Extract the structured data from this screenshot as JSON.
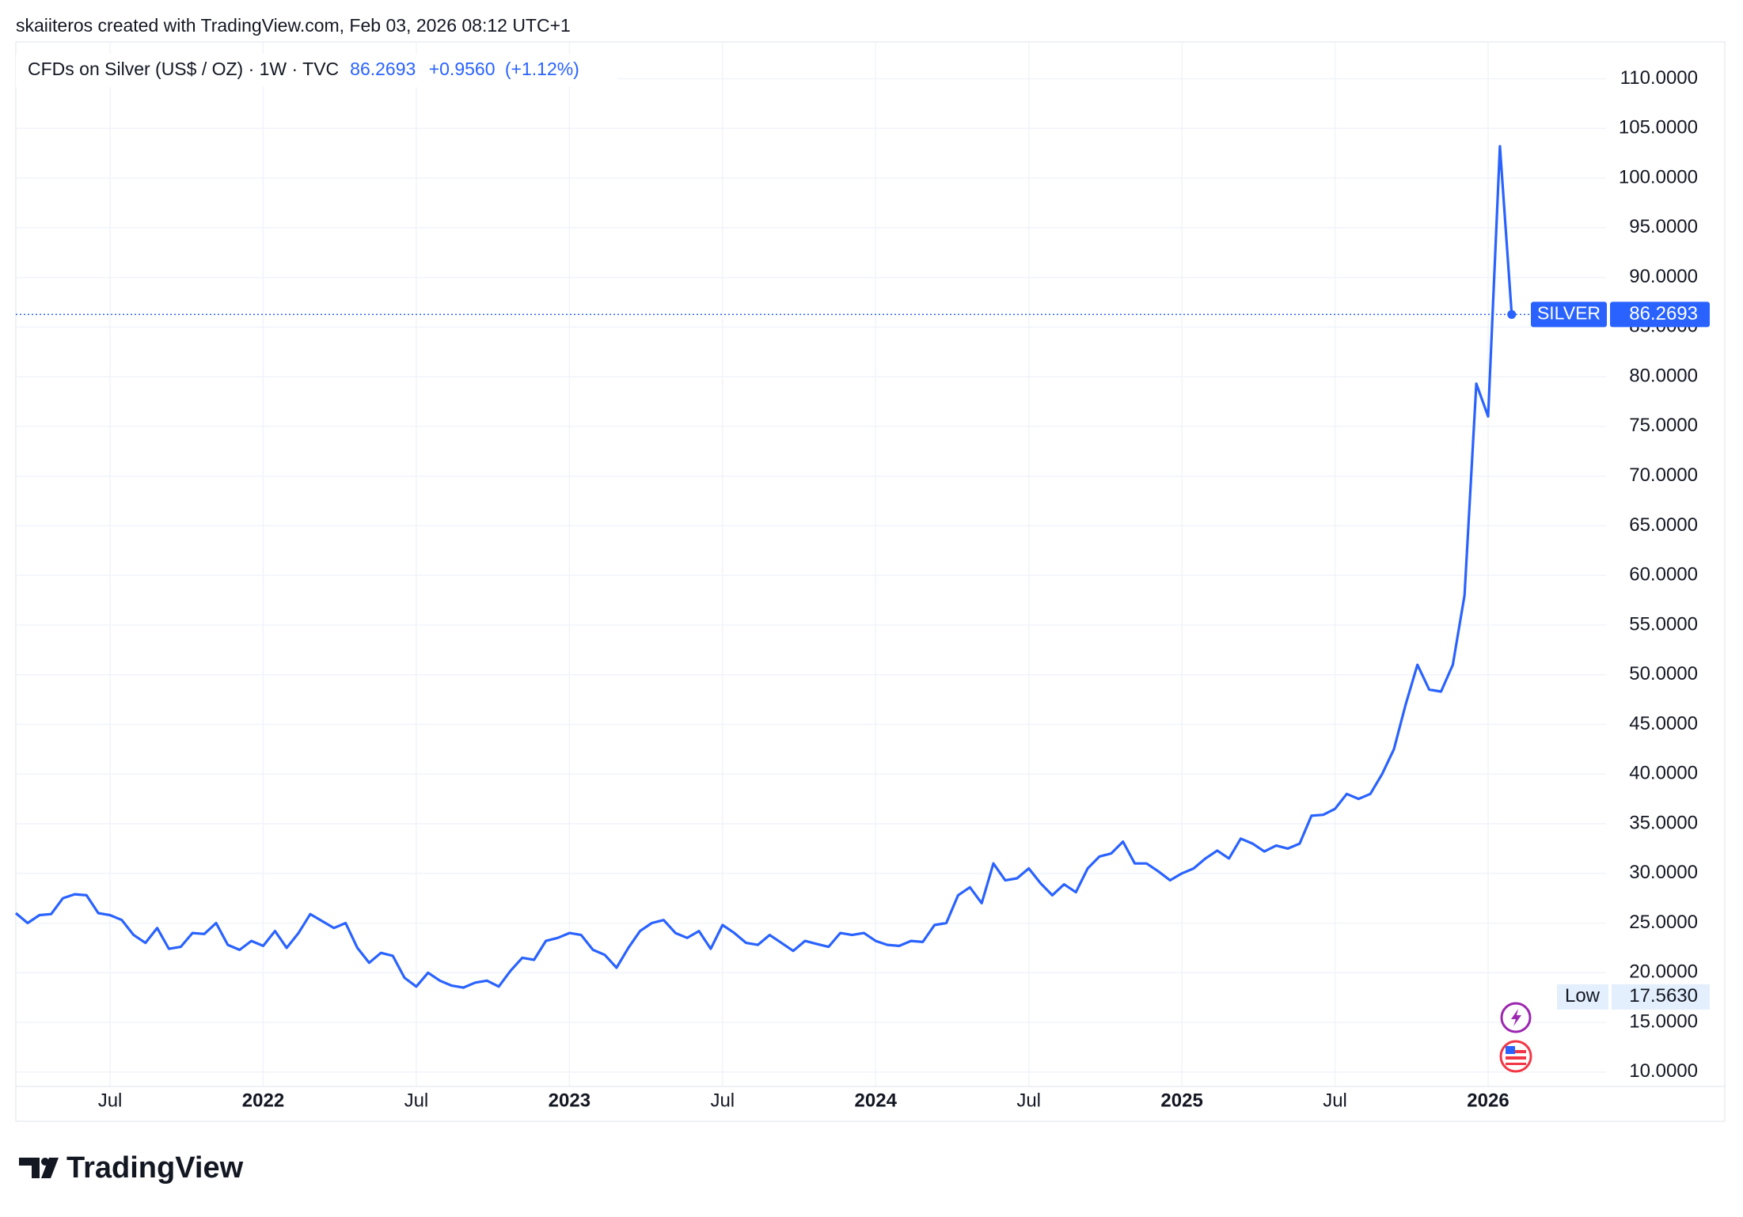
{
  "attribution": "skaiiteros created with TradingView.com, Feb 03, 2026 08:12 UTC+1",
  "logo": "TradingView",
  "chart_data": {
    "type": "line",
    "title": "CFDs on Silver (US$ / OZ) · 1W · TVC",
    "price_text": "86.2693",
    "change_text": "+0.9560",
    "change_pct_text": "(+1.12%)",
    "categories": [
      null,
      null,
      null,
      null,
      null,
      null,
      null,
      null,
      "Jul",
      null,
      null,
      null,
      null,
      null,
      null,
      null,
      null,
      null,
      null,
      null,
      null,
      "2022",
      null,
      null,
      null,
      null,
      null,
      null,
      null,
      null,
      null,
      null,
      null,
      null,
      "Jul",
      null,
      null,
      null,
      null,
      null,
      null,
      null,
      null,
      null,
      null,
      null,
      null,
      "2023",
      null,
      null,
      null,
      null,
      null,
      null,
      null,
      null,
      null,
      null,
      null,
      null,
      "Jul",
      null,
      null,
      null,
      null,
      null,
      null,
      null,
      null,
      null,
      null,
      null,
      null,
      "2024",
      null,
      null,
      null,
      null,
      null,
      null,
      null,
      null,
      null,
      null,
      null,
      null,
      "Jul",
      null,
      null,
      null,
      null,
      null,
      null,
      null,
      null,
      null,
      null,
      null,
      null,
      "2025",
      null,
      null,
      null,
      null,
      null,
      null,
      null,
      null,
      null,
      null,
      null,
      null,
      "Jul",
      null,
      null,
      null,
      null,
      null,
      null,
      null,
      null,
      null,
      null,
      null,
      null,
      "2026",
      null,
      null
    ],
    "series": [
      {
        "name": "SILVER",
        "color": "#2962ff",
        "values": [
          26.0,
          25.0,
          25.8,
          25.9,
          27.5,
          27.9,
          27.8,
          26.0,
          25.8,
          25.3,
          23.8,
          23.0,
          24.5,
          22.4,
          22.6,
          24.0,
          23.9,
          25.0,
          22.8,
          22.3,
          23.2,
          22.7,
          24.2,
          22.5,
          24.0,
          25.9,
          25.2,
          24.5,
          25.0,
          22.5,
          21.0,
          22.0,
          21.7,
          19.5,
          18.6,
          20.0,
          19.2,
          18.7,
          18.5,
          19.0,
          19.2,
          18.6,
          20.2,
          21.5,
          21.3,
          23.2,
          23.5,
          24.0,
          23.8,
          22.3,
          21.8,
          20.5,
          22.5,
          24.2,
          25.0,
          25.3,
          24.0,
          23.5,
          24.2,
          22.4,
          24.8,
          24.0,
          23.0,
          22.8,
          23.8,
          23.0,
          22.2,
          23.2,
          22.9,
          22.6,
          24.0,
          23.8,
          24.0,
          23.2,
          22.8,
          22.7,
          23.2,
          23.1,
          24.8,
          25.0,
          27.8,
          28.6,
          27.0,
          31.0,
          29.3,
          29.5,
          30.5,
          29.0,
          27.8,
          28.9,
          28.1,
          30.5,
          31.7,
          32.0,
          33.2,
          31.0,
          31.0,
          30.2,
          29.3,
          30.0,
          30.5,
          31.5,
          32.3,
          31.5,
          33.5,
          33.0,
          32.2,
          32.8,
          32.5,
          33.0,
          35.8,
          35.9,
          36.5,
          38.0,
          37.5,
          38.0,
          40.0,
          42.5,
          47.0,
          51.0,
          48.5,
          48.3,
          51.0,
          58.0,
          79.3,
          76.0,
          103.2,
          86.2693
        ]
      }
    ],
    "low": {
      "name": "Low",
      "value": 17.563,
      "label": "17.5630"
    },
    "ylim": [
      8.55,
      113.47
    ],
    "yticks": [
      {
        "value": 10,
        "label": "10.0000"
      },
      {
        "value": 15,
        "label": "15.0000"
      },
      {
        "value": 20,
        "label": "20.0000"
      },
      {
        "value": 25,
        "label": "25.0000"
      },
      {
        "value": 30,
        "label": "30.0000"
      },
      {
        "value": 35,
        "label": "35.0000"
      },
      {
        "value": 40,
        "label": "40.0000"
      },
      {
        "value": 45,
        "label": "45.0000"
      },
      {
        "value": 50,
        "label": "50.0000"
      },
      {
        "value": 55,
        "label": "55.0000"
      },
      {
        "value": 60,
        "label": "60.0000"
      },
      {
        "value": 65,
        "label": "65.0000"
      },
      {
        "value": 70,
        "label": "70.0000"
      },
      {
        "value": 75,
        "label": "75.0000"
      },
      {
        "value": 80,
        "label": "80.0000"
      },
      {
        "value": 85,
        "label": "85.0000"
      },
      {
        "value": 90,
        "label": "90.0000"
      },
      {
        "value": 95,
        "label": "95.0000"
      },
      {
        "value": 100,
        "label": "100.0000"
      },
      {
        "value": 105,
        "label": "105.0000"
      },
      {
        "value": 110,
        "label": "110.0000"
      }
    ],
    "grid": true
  }
}
